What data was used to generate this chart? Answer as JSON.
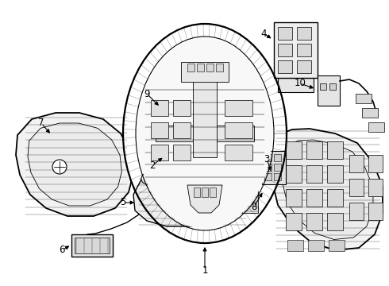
{
  "bg_color": "#ffffff",
  "lc": "#000000",
  "fig_w": 4.9,
  "fig_h": 3.6,
  "dpi": 100,
  "xlim": [
    0,
    490
  ],
  "ylim": [
    0,
    360
  ]
}
